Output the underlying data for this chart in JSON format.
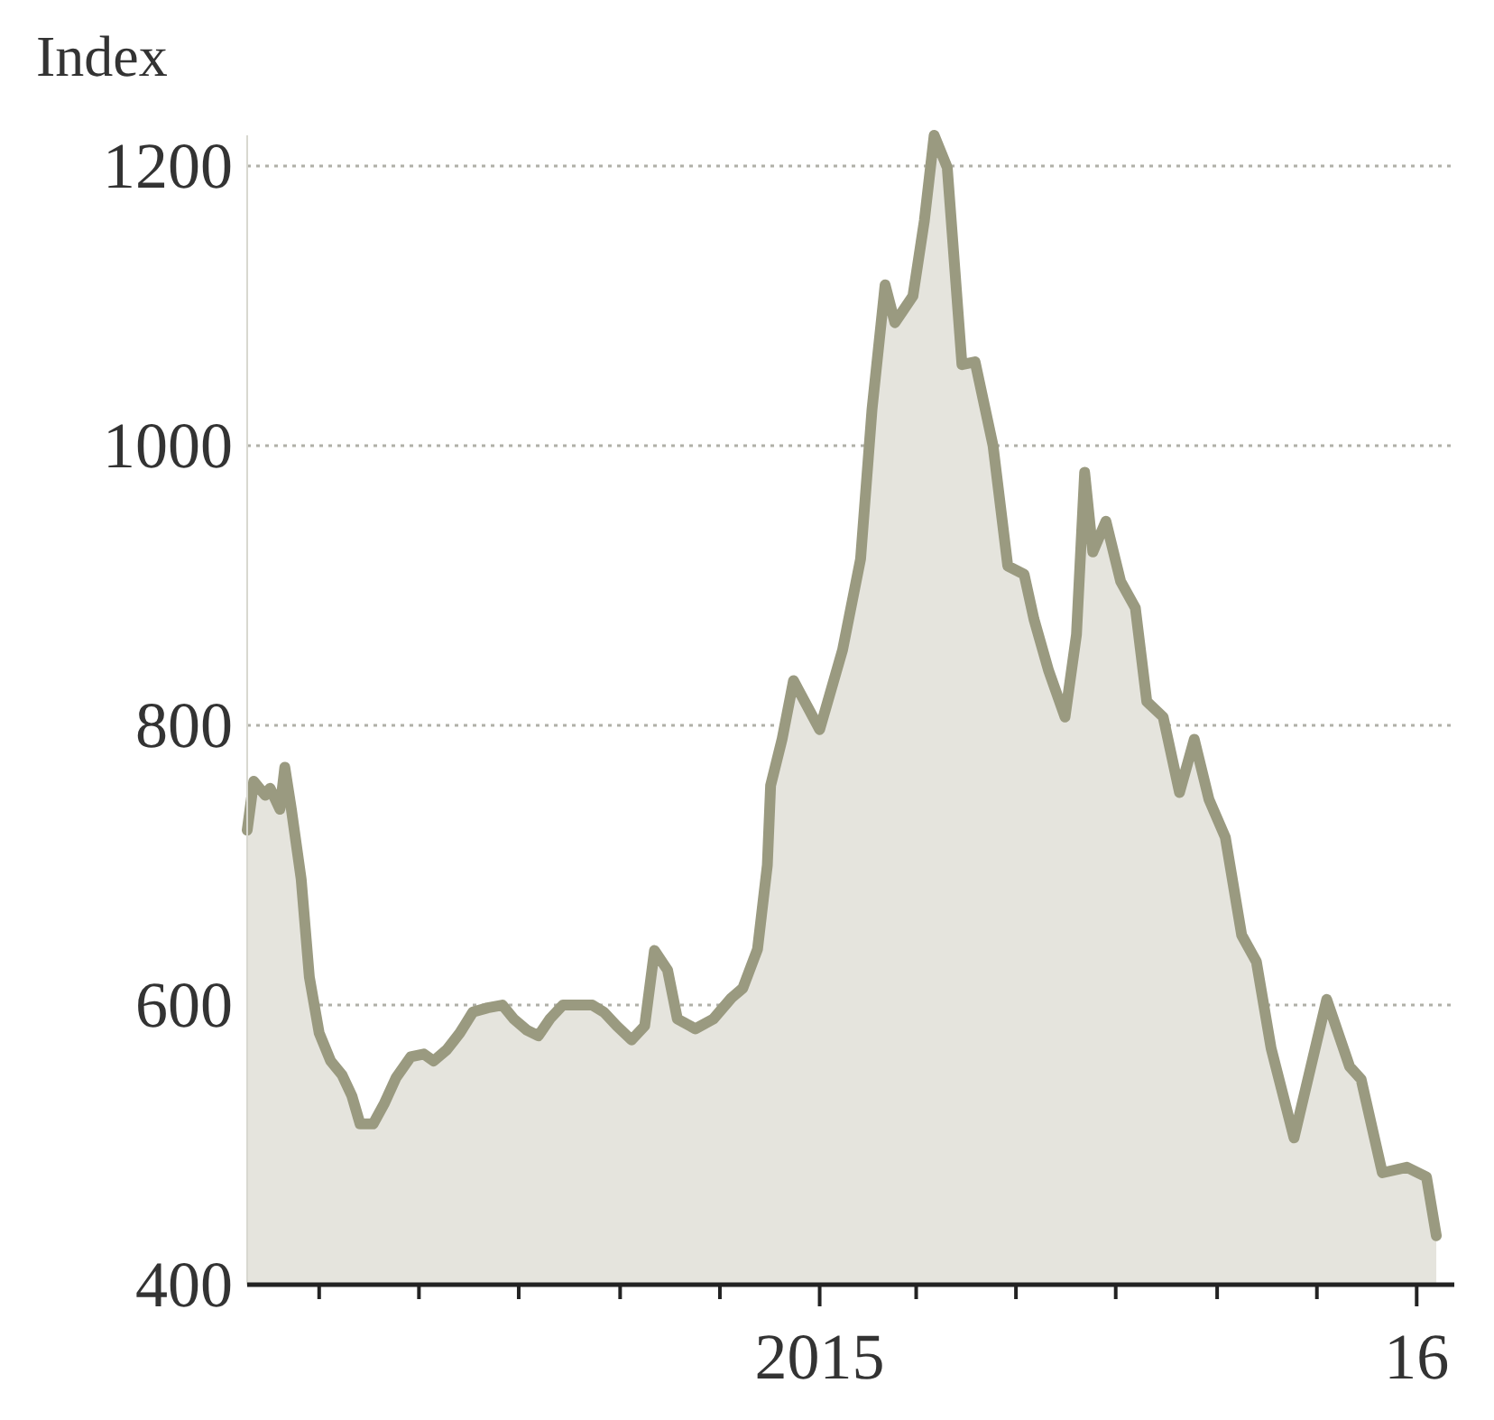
{
  "chart_data": {
    "type": "area",
    "ylabel": "Index",
    "color": "#9a9a80",
    "x": [
      "2014-01-16",
      "2014-01-20",
      "2014-01-27",
      "2014-01-30",
      "2014-02-05",
      "2014-02-08",
      "2014-02-12",
      "2014-02-18",
      "2014-02-23",
      "2014-03-01",
      "2014-03-08",
      "2014-03-15",
      "2014-03-21",
      "2014-03-26",
      "2014-04-03",
      "2014-04-10",
      "2014-04-17",
      "2014-04-26",
      "2014-05-04",
      "2014-05-10",
      "2014-05-18",
      "2014-05-26",
      "2014-06-03",
      "2014-06-12",
      "2014-06-21",
      "2014-06-28",
      "2014-07-06",
      "2014-07-13",
      "2014-07-20",
      "2014-07-28",
      "2014-08-06",
      "2014-08-15",
      "2014-08-22",
      "2014-08-30",
      "2014-09-08",
      "2014-09-16",
      "2014-09-22",
      "2014-09-30",
      "2014-10-06",
      "2014-10-17",
      "2014-10-28",
      "2014-11-08",
      "2014-11-15",
      "2014-11-24",
      "2014-11-30",
      "2014-12-02",
      "2014-12-09",
      "2014-12-16",
      "2015-01-01",
      "2015-01-15",
      "2015-01-26",
      "2015-02-02",
      "2015-02-10",
      "2015-02-16",
      "2015-02-27",
      "2015-03-06",
      "2015-03-12",
      "2015-03-20",
      "2015-03-29",
      "2015-04-06",
      "2015-04-17",
      "2015-04-26",
      "2015-05-06",
      "2015-05-12",
      "2015-05-21",
      "2015-05-31",
      "2015-06-07",
      "2015-06-12",
      "2015-06-17",
      "2015-06-25",
      "2015-07-04",
      "2015-07-13",
      "2015-07-20",
      "2015-07-30",
      "2015-08-09",
      "2015-08-18",
      "2015-08-27",
      "2015-09-06",
      "2015-09-16",
      "2015-09-25",
      "2015-10-04",
      "2015-10-18",
      "2015-11-07",
      "2015-11-21",
      "2015-11-28",
      "2015-12-11",
      "2015-12-26",
      "2016-01-07",
      "2016-01-13"
    ],
    "values": [
      725,
      760,
      750,
      755,
      740,
      770,
      740,
      690,
      620,
      580,
      560,
      550,
      535,
      515,
      515,
      530,
      548,
      563,
      565,
      560,
      568,
      580,
      595,
      598,
      600,
      590,
      582,
      578,
      590,
      600,
      600,
      600,
      595,
      585,
      575,
      585,
      639,
      625,
      590,
      583,
      590,
      605,
      612,
      640,
      700,
      757,
      790,
      832,
      797,
      854,
      919,
      1026,
      1115,
      1088,
      1107,
      1161,
      1222,
      1199,
      1058,
      1060,
      1000,
      914,
      908,
      876,
      839,
      806,
      865,
      981,
      924,
      946,
      903,
      884,
      817,
      806,
      752,
      790,
      747,
      720,
      650,
      631,
      569,
      505,
      604,
      556,
      547,
      480,
      484,
      477,
      435
    ],
    "xlim": [
      "2014-01-16",
      "2016-01-24"
    ],
    "xticks": [
      {
        "value": "2014-03-01",
        "label": null
      },
      {
        "value": "2014-05-01",
        "label": null
      },
      {
        "value": "2014-07-01",
        "label": null
      },
      {
        "value": "2014-09-01",
        "label": null
      },
      {
        "value": "2014-11-01",
        "label": null
      },
      {
        "value": "2015-01-01",
        "label": "2015"
      },
      {
        "value": "2015-03-01",
        "label": null
      },
      {
        "value": "2015-05-01",
        "label": null
      },
      {
        "value": "2015-07-01",
        "label": null
      },
      {
        "value": "2015-09-01",
        "label": null
      },
      {
        "value": "2015-11-01",
        "label": null
      },
      {
        "value": "2016-01-01",
        "label": "16"
      }
    ],
    "ylim": [
      400,
      1222
    ],
    "yticks": [
      400,
      600,
      800,
      1000,
      1200
    ],
    "grid": "y",
    "line_style": "solid",
    "marker": "none"
  }
}
